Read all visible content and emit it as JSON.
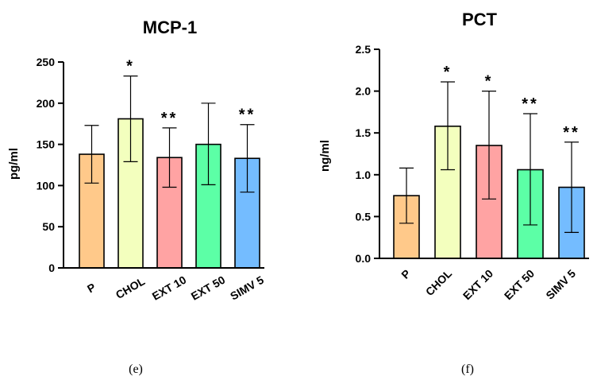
{
  "chart_data": [
    {
      "type": "bar",
      "title": "MCP-1",
      "ylabel": "pg/ml",
      "xlabel": "",
      "ylim": [
        0,
        250
      ],
      "yticks": [
        0,
        50,
        100,
        150,
        200,
        250
      ],
      "ytick_labels": [
        "0",
        "50",
        "100",
        "150",
        "200",
        "250"
      ],
      "categories": [
        "P",
        "CHOL",
        "EXT 10",
        "EXT 50",
        "SIMV 5"
      ],
      "values": [
        138,
        181,
        134,
        150,
        133
      ],
      "error_low": [
        103,
        129,
        98,
        101,
        92
      ],
      "error_high": [
        173,
        233,
        170,
        200,
        174
      ],
      "annotations": [
        "",
        "*",
        "**",
        "",
        "**"
      ],
      "colors": [
        "#FFC98A",
        "#F3FFBE",
        "#FFA3A3",
        "#5CFFA6",
        "#74BCFF"
      ],
      "rotated_labels": false,
      "caption": "(e)"
    },
    {
      "type": "bar",
      "title": "PCT",
      "ylabel": "ng/ml",
      "xlabel": "",
      "ylim": [
        0,
        2.5
      ],
      "yticks": [
        0,
        0.5,
        1,
        1.5,
        2,
        2.5
      ],
      "ytick_labels": [
        "0.0",
        "0.5",
        "1.0",
        "1.5",
        "2.0",
        "2.5"
      ],
      "categories": [
        "P",
        "CHOL",
        "EXT 10",
        "EXT 50",
        "SIMV 5"
      ],
      "values": [
        0.75,
        1.58,
        1.35,
        1.06,
        0.85
      ],
      "error_low": [
        0.42,
        1.06,
        0.71,
        0.4,
        0.31
      ],
      "error_high": [
        1.08,
        2.11,
        2.0,
        1.73,
        1.39
      ],
      "annotations": [
        "",
        "*",
        "*",
        "**",
        "**"
      ],
      "colors": [
        "#FFC98A",
        "#F3FFBE",
        "#FFA3A3",
        "#5CFFA6",
        "#74BCFF"
      ],
      "rotated_labels": true,
      "caption": "(f)"
    }
  ]
}
